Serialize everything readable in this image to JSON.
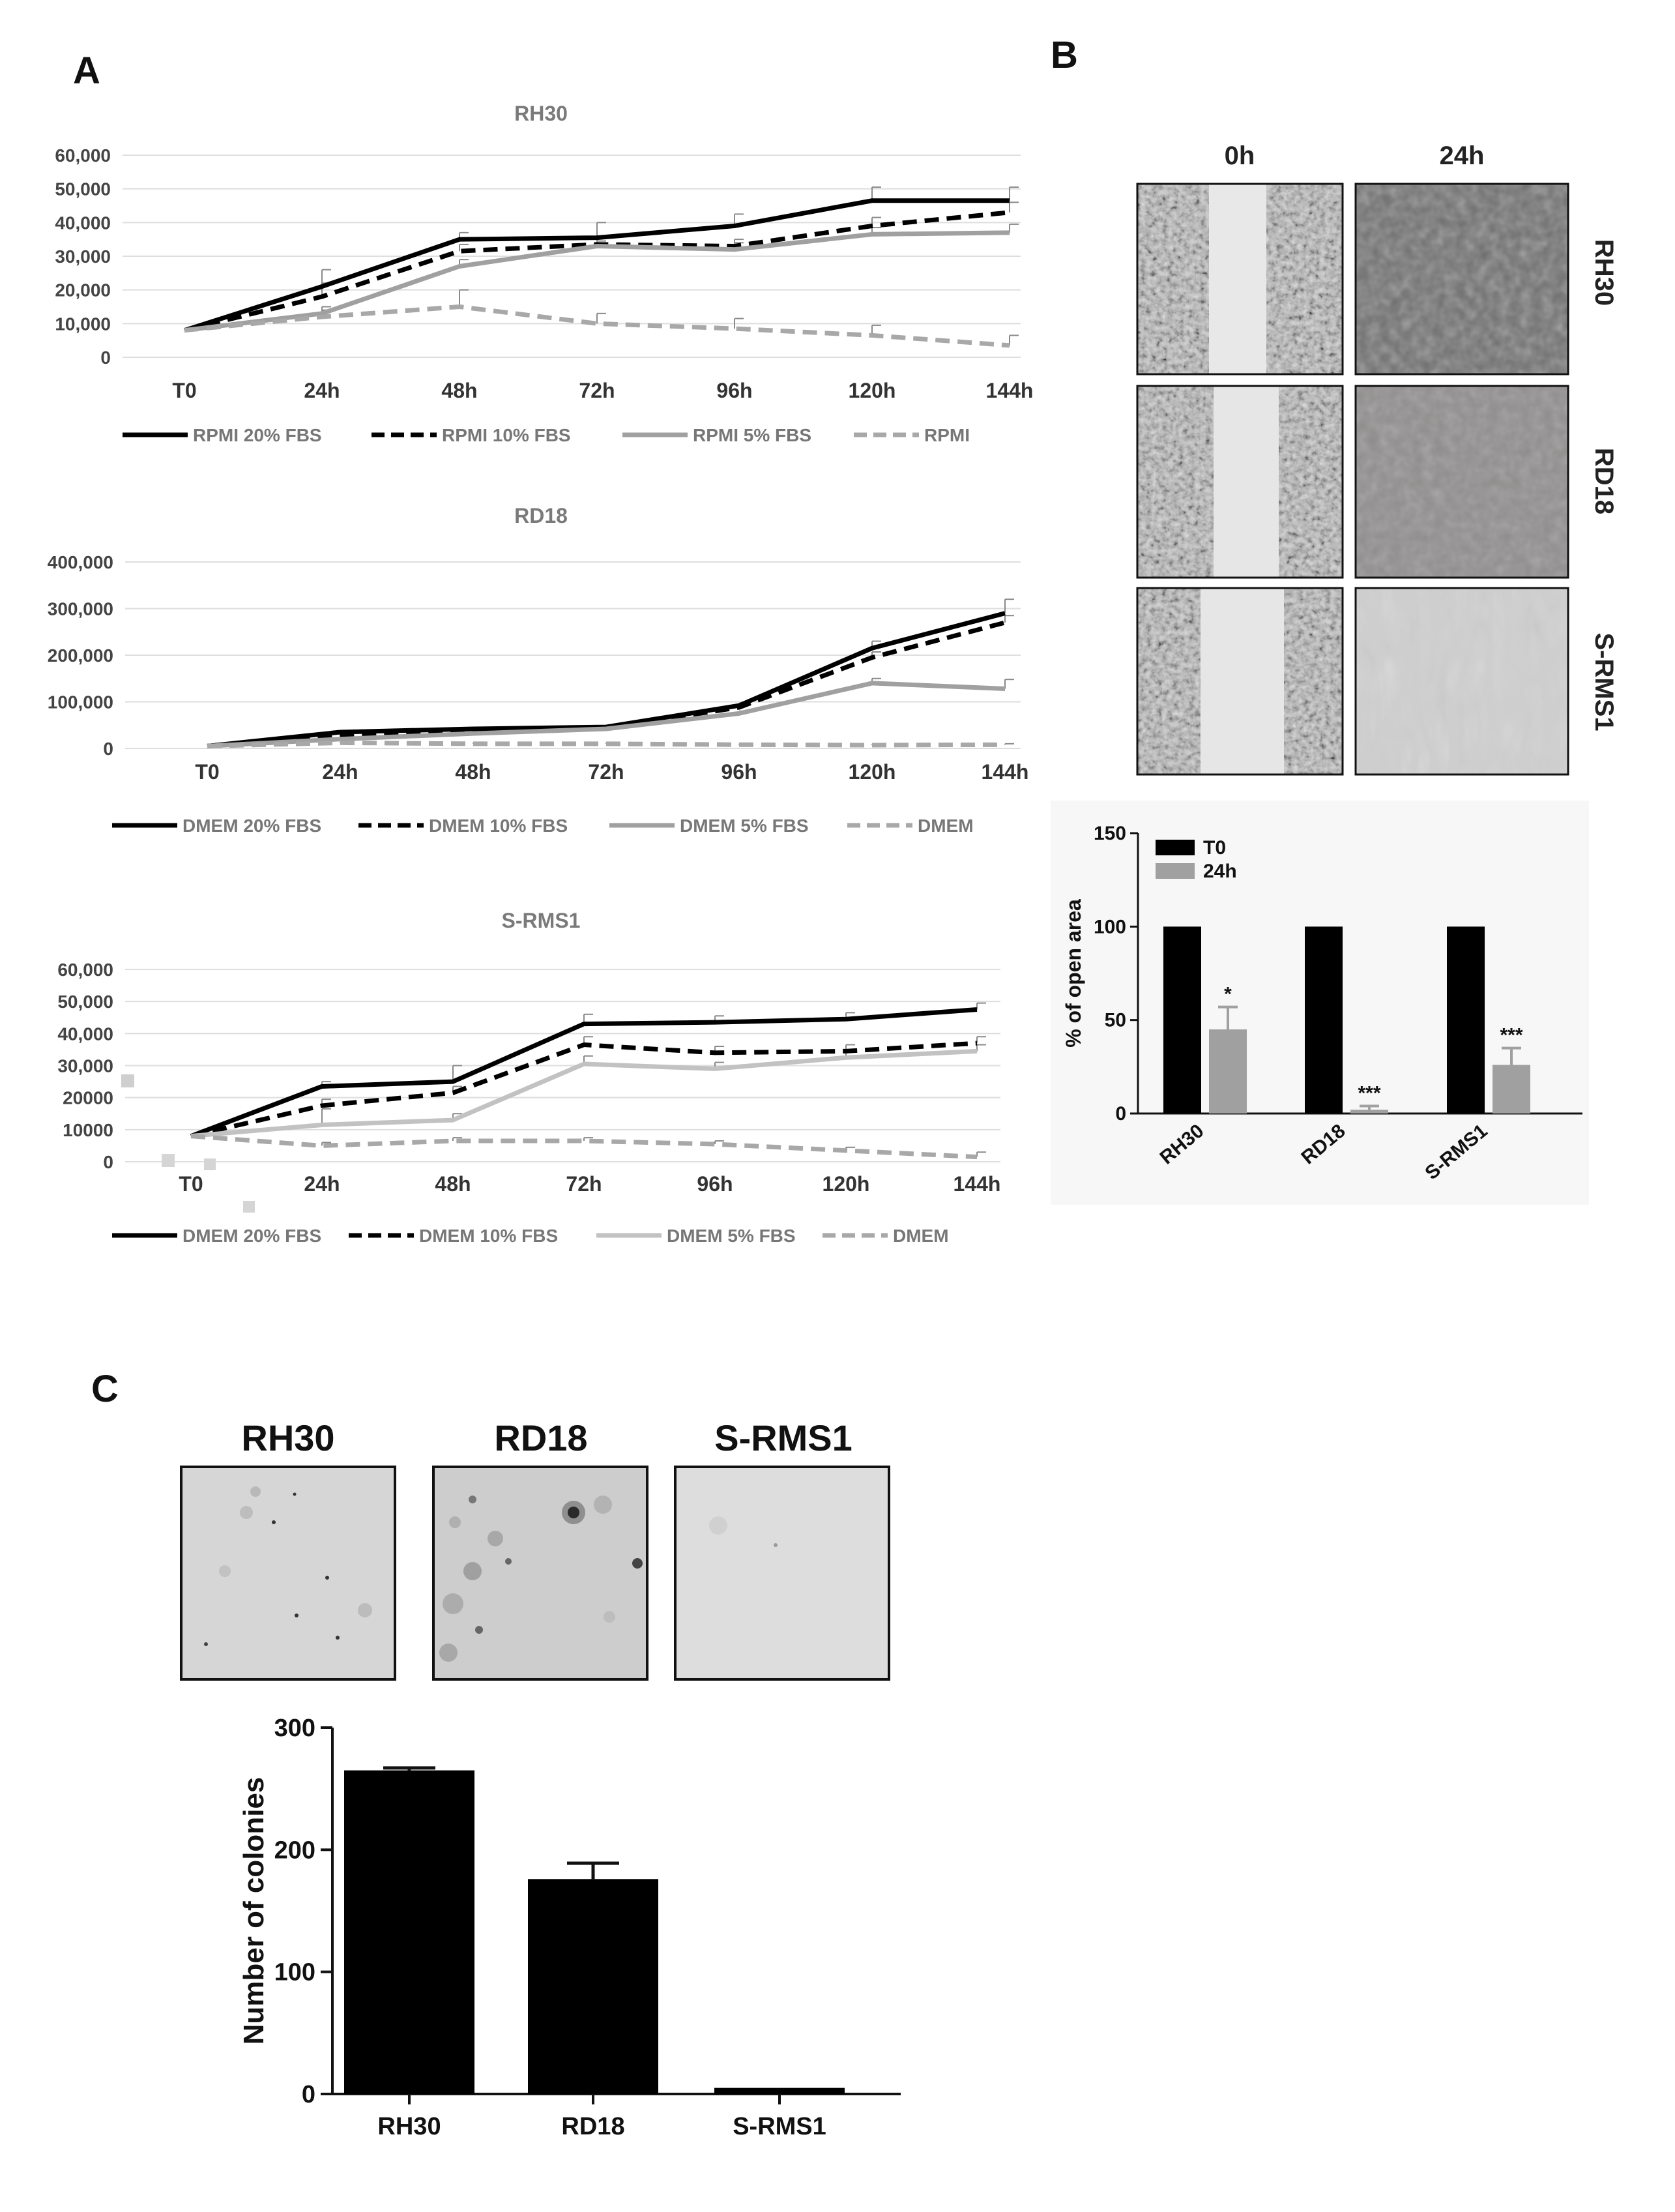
{
  "panel_labels": {
    "a": "A",
    "b": "B",
    "c": "C"
  },
  "microscopy": {
    "col_labels": [
      "0h",
      "24h"
    ],
    "row_labels": [
      "RH30",
      "RD18",
      "S-RMS1"
    ]
  },
  "colony_photo_labels": [
    "RH30",
    "RD18",
    "S-RMS1"
  ],
  "chart_data": [
    {
      "id": "rh30",
      "type": "line",
      "title": "RH30",
      "categories": [
        "T0",
        "24h",
        "48h",
        "72h",
        "96h",
        "120h",
        "144h"
      ],
      "ylim": [
        0,
        60000
      ],
      "y_ticks": [
        "0",
        "10,000",
        "20,000",
        "30,000",
        "40,000",
        "50,000",
        "60,000"
      ],
      "tick_values": [
        0,
        10000,
        20000,
        30000,
        40000,
        50000,
        60000
      ],
      "series": [
        {
          "name": "RPMI 20% FBS",
          "values": [
            8000,
            21000,
            35000,
            35500,
            39000,
            46500,
            46500
          ],
          "errors": [
            0,
            5000,
            2000,
            4500,
            3500,
            4000,
            4000
          ],
          "color": "#000000",
          "dash": ""
        },
        {
          "name": "RPMI 10% FBS",
          "values": [
            8000,
            18000,
            31500,
            33500,
            33000,
            39000,
            43000
          ],
          "errors": [
            0,
            4000,
            2000,
            2500,
            2000,
            2500,
            3000
          ],
          "color": "#000000",
          "dash": "22,12"
        },
        {
          "name": "RPMI 5% FBS",
          "values": [
            8000,
            13000,
            27000,
            33000,
            32000,
            36500,
            37000
          ],
          "errors": [
            0,
            2000,
            2000,
            1500,
            2000,
            2000,
            2500
          ],
          "color": "#a0a0a0",
          "dash": ""
        },
        {
          "name": "RPMI",
          "values": [
            8000,
            12000,
            15000,
            10000,
            8500,
            6500,
            3500
          ],
          "errors": [
            0,
            2000,
            5000,
            3000,
            3000,
            3000,
            3000
          ],
          "color": "#a8a8a8",
          "dash": "22,12"
        }
      ]
    },
    {
      "id": "rd18",
      "type": "line",
      "title": "RD18",
      "categories": [
        "T0",
        "24h",
        "48h",
        "72h",
        "96h",
        "120h",
        "144h"
      ],
      "ylim": [
        0,
        400000
      ],
      "y_ticks": [
        "0",
        "100,000",
        "200,000",
        "300,000",
        "400,000"
      ],
      "tick_values": [
        0,
        100000,
        200000,
        300000,
        400000
      ],
      "series": [
        {
          "name": "DMEM 20% FBS",
          "values": [
            5000,
            35000,
            42000,
            46000,
            92000,
            215000,
            290000
          ],
          "errors": [
            0,
            3000,
            3000,
            3000,
            5000,
            15000,
            30000
          ],
          "color": "#000000",
          "dash": ""
        },
        {
          "name": "DMEM 10% FBS",
          "values": [
            5000,
            28000,
            38000,
            44000,
            88000,
            195000,
            270000
          ],
          "errors": [
            0,
            3000,
            3000,
            3000,
            5000,
            12000,
            15000
          ],
          "color": "#000000",
          "dash": "22,12"
        },
        {
          "name": "DMEM 5% FBS",
          "values": [
            5000,
            20000,
            32000,
            42000,
            75000,
            140000,
            128000
          ],
          "errors": [
            0,
            3000,
            3000,
            3000,
            5000,
            10000,
            20000
          ],
          "color": "#a0a0a0",
          "dash": ""
        },
        {
          "name": "DMEM",
          "values": [
            5000,
            12000,
            10000,
            10000,
            8000,
            7000,
            8000
          ],
          "errors": [
            0,
            2000,
            2000,
            2000,
            2000,
            2000,
            2000
          ],
          "color": "#a8a8a8",
          "dash": "22,12"
        }
      ]
    },
    {
      "id": "srms1",
      "type": "line",
      "title": "S-RMS1",
      "categories": [
        "T0",
        "24h",
        "48h",
        "72h",
        "96h",
        "120h",
        "144h"
      ],
      "ylim": [
        0,
        60000
      ],
      "y_ticks": [
        "0",
        "10000",
        "20000",
        "30,000",
        "40,000",
        "50,000",
        "60,000"
      ],
      "tick_values": [
        0,
        10000,
        20000,
        30000,
        40000,
        50000,
        60000
      ],
      "series": [
        {
          "name": "DMEM 20% FBS",
          "values": [
            8000,
            23500,
            25000,
            43000,
            43500,
            44500,
            47500
          ],
          "errors": [
            0,
            1500,
            5000,
            3000,
            2000,
            2000,
            2000
          ],
          "color": "#000000",
          "dash": ""
        },
        {
          "name": "DMEM 10% FBS",
          "values": [
            8000,
            17500,
            21500,
            36500,
            34000,
            34500,
            37000
          ],
          "errors": [
            0,
            2000,
            2000,
            2500,
            2000,
            2000,
            2000
          ],
          "color": "#000000",
          "dash": "22,12"
        },
        {
          "name": "DMEM 5% FBS",
          "values": [
            8000,
            11500,
            13000,
            30500,
            29000,
            32500,
            34500
          ],
          "errors": [
            0,
            5000,
            2000,
            2500,
            2000,
            2000,
            2000
          ],
          "color": "#c2c2c2",
          "dash": ""
        },
        {
          "name": "DMEM",
          "values": [
            8000,
            5000,
            6500,
            6500,
            5500,
            3500,
            1500
          ],
          "errors": [
            0,
            1000,
            1000,
            1000,
            1000,
            1000,
            1500
          ],
          "color": "#a8a8a8",
          "dash": "22,12"
        }
      ]
    },
    {
      "id": "open_area",
      "type": "bar",
      "categories": [
        "RH30",
        "RD18",
        "S-RMS1"
      ],
      "ylabel": "% of open area",
      "ylim": [
        0,
        150
      ],
      "y_ticks": [
        "0",
        "50",
        "100",
        "150"
      ],
      "tick_values": [
        0,
        50,
        100,
        150
      ],
      "series": [
        {
          "name": "T0",
          "values": [
            100,
            100,
            100
          ],
          "errors": [
            0,
            0,
            0
          ],
          "color": "#000000"
        },
        {
          "name": "24h",
          "values": [
            45,
            2,
            26
          ],
          "errors": [
            12,
            2,
            9
          ],
          "color": "#a0a0a0"
        }
      ],
      "significance": [
        "*",
        "***",
        "***"
      ]
    },
    {
      "id": "colonies",
      "type": "bar",
      "categories": [
        "RH30",
        "RD18",
        "S-RMS1"
      ],
      "ylabel": "Number of colonies",
      "ylim": [
        0,
        300
      ],
      "y_ticks": [
        "0",
        "100",
        "200",
        "300"
      ],
      "tick_values": [
        0,
        100,
        200,
        300
      ],
      "values": [
        265,
        176,
        5
      ],
      "errors": [
        2,
        13,
        0
      ],
      "color": "#000000"
    }
  ]
}
